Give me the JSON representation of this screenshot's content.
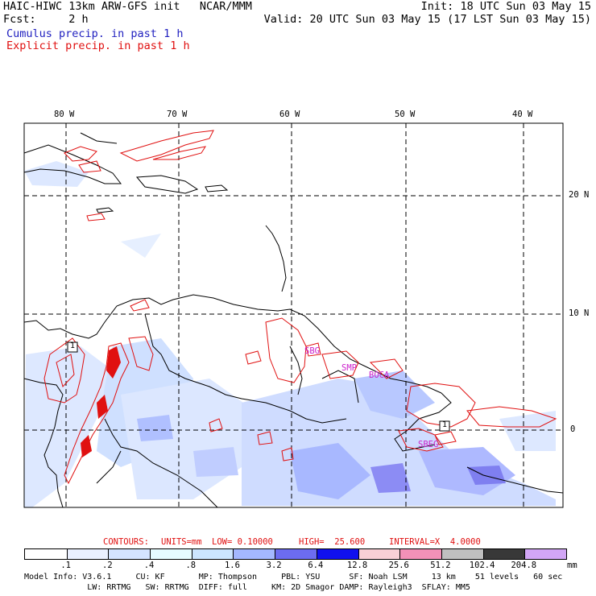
{
  "header": {
    "left_line1": "HAIC-HIWC 13km ARW-GFS init   NCAR/MMM",
    "left_line2": "Fcst:     2 h",
    "right_line1": "Init: 18 UTC Sun 03 May 15",
    "right_line2": "Valid: 20 UTC Sun 03 May 15 (17 LST Sun 03 May 15)",
    "legend_cumulus": "Cumulus precip. in past 1 h",
    "legend_explicit": "Explicit precip. in past 1 h"
  },
  "map": {
    "lon_labels": [
      "80 W",
      "70 W",
      "60 W",
      "50 W",
      "40 W"
    ],
    "lat_labels": [
      "20 N",
      "10 N",
      "0"
    ],
    "city_labels": [
      "SBG",
      "SMP",
      "BOCA",
      "SBEG"
    ],
    "contour_markers": [
      "1",
      "1"
    ],
    "colors": {
      "coast": "#000000",
      "explicit_contour": "#e01010",
      "city": "#cc22cc",
      "grid": "#000000"
    }
  },
  "contours_caption": {
    "label": "CONTOURS:",
    "units": "UNITS=mm",
    "low": "LOW= 0.10000",
    "high": "HIGH=  25.600",
    "interval": "INTERVAL=X  4.0000"
  },
  "colorbar": {
    "unit": "mm",
    "ticks": [
      ".1",
      ".2",
      ".4",
      ".8",
      "1.6",
      "3.2",
      "6.4",
      "12.8",
      "25.6",
      "51.2",
      "102.4",
      "204.8"
    ],
    "colors": [
      "#ffffff",
      "#eaf0ff",
      "#d4e4ff",
      "#e6fbff",
      "#cce6ff",
      "#a4b8ff",
      "#6c6cf0",
      "#1010ee",
      "#f8d0d6",
      "#f291b8",
      "#c0c0c0",
      "#383838",
      "#d2a6f6"
    ]
  },
  "model_info": {
    "line1": "Model Info: V3.6.1     CU: KF       MP: Thompson     PBL: YSU      SF: Noah LSM     13 km    51 levels   60 sec",
    "line2": "             LW: RRTMG   SW: RRTMG  DIFF: full     KM: 2D Smagor DAMP: Rayleigh3  SFLAY: MM5"
  }
}
